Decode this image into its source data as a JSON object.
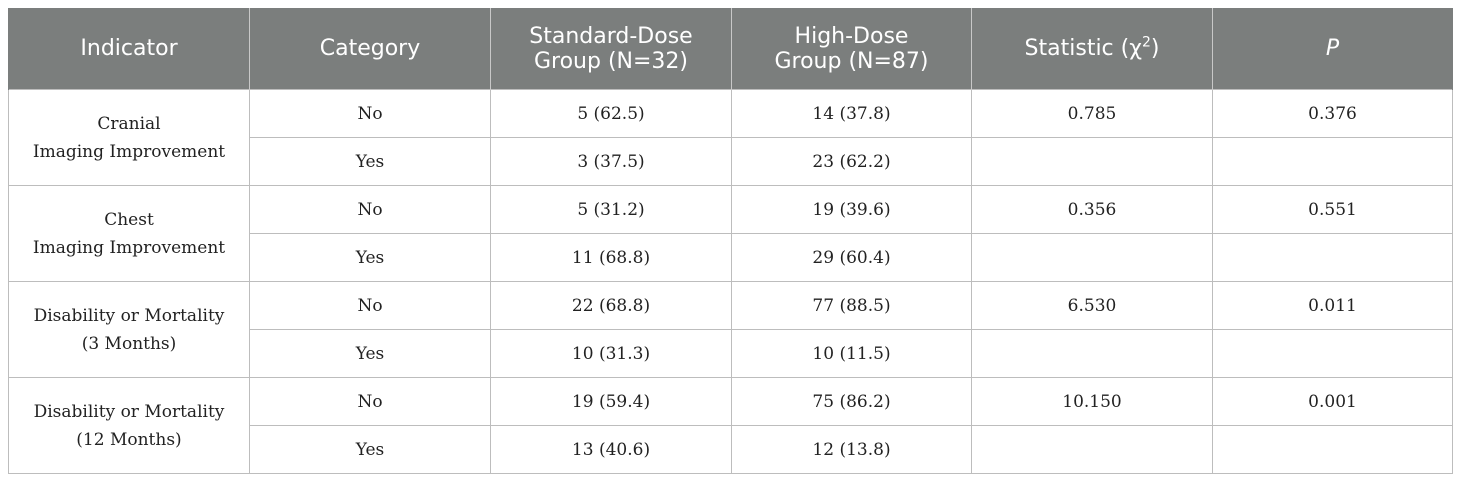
{
  "header": {
    "indicator": "Indicator",
    "category": "Category",
    "standard_dose_line1": "Standard-Dose",
    "standard_dose_line2": "Group (N=32)",
    "high_dose_line1": "High-Dose",
    "high_dose_line2": "Group (N=87)",
    "statistic_prefix": "Statistic (χ",
    "statistic_sup": "2",
    "statistic_suffix": ")",
    "p": "P"
  },
  "groups": [
    {
      "indicator_line1": "Cranial",
      "indicator_line2": "Imaging Improvement",
      "statistic": "0.785",
      "p": "0.376",
      "rows": [
        {
          "category": "No",
          "standard": "5 (62.5)",
          "high": "14 (37.8)"
        },
        {
          "category": "Yes",
          "standard": "3 (37.5)",
          "high": "23 (62.2)"
        }
      ]
    },
    {
      "indicator_line1": "Chest",
      "indicator_line2": "Imaging Improvement",
      "statistic": "0.356",
      "p": "0.551",
      "rows": [
        {
          "category": "No",
          "standard": "5 (31.2)",
          "high": "19 (39.6)"
        },
        {
          "category": "Yes",
          "standard": "11 (68.8)",
          "high": "29 (60.4)"
        }
      ]
    },
    {
      "indicator_line1": "Disability or Mortality",
      "indicator_line2": "(3 Months)",
      "statistic": "6.530",
      "p": "0.011",
      "rows": [
        {
          "category": "No",
          "standard": "22 (68.8)",
          "high": "77 (88.5)"
        },
        {
          "category": "Yes",
          "standard": "10 (31.3)",
          "high": "10 (11.5)"
        }
      ]
    },
    {
      "indicator_line1": "Disability or Mortality",
      "indicator_line2": "(12 Months)",
      "statistic": "10.150",
      "p": "0.001",
      "rows": [
        {
          "category": "No",
          "standard": "19 (59.4)",
          "high": "75 (86.2)"
        },
        {
          "category": "Yes",
          "standard": "13 (40.6)",
          "high": "12 (13.8)"
        }
      ]
    }
  ],
  "colors": {
    "header_bg": "#7b7e7d",
    "header_text": "#ffffff",
    "border": "#bdbdbd"
  }
}
